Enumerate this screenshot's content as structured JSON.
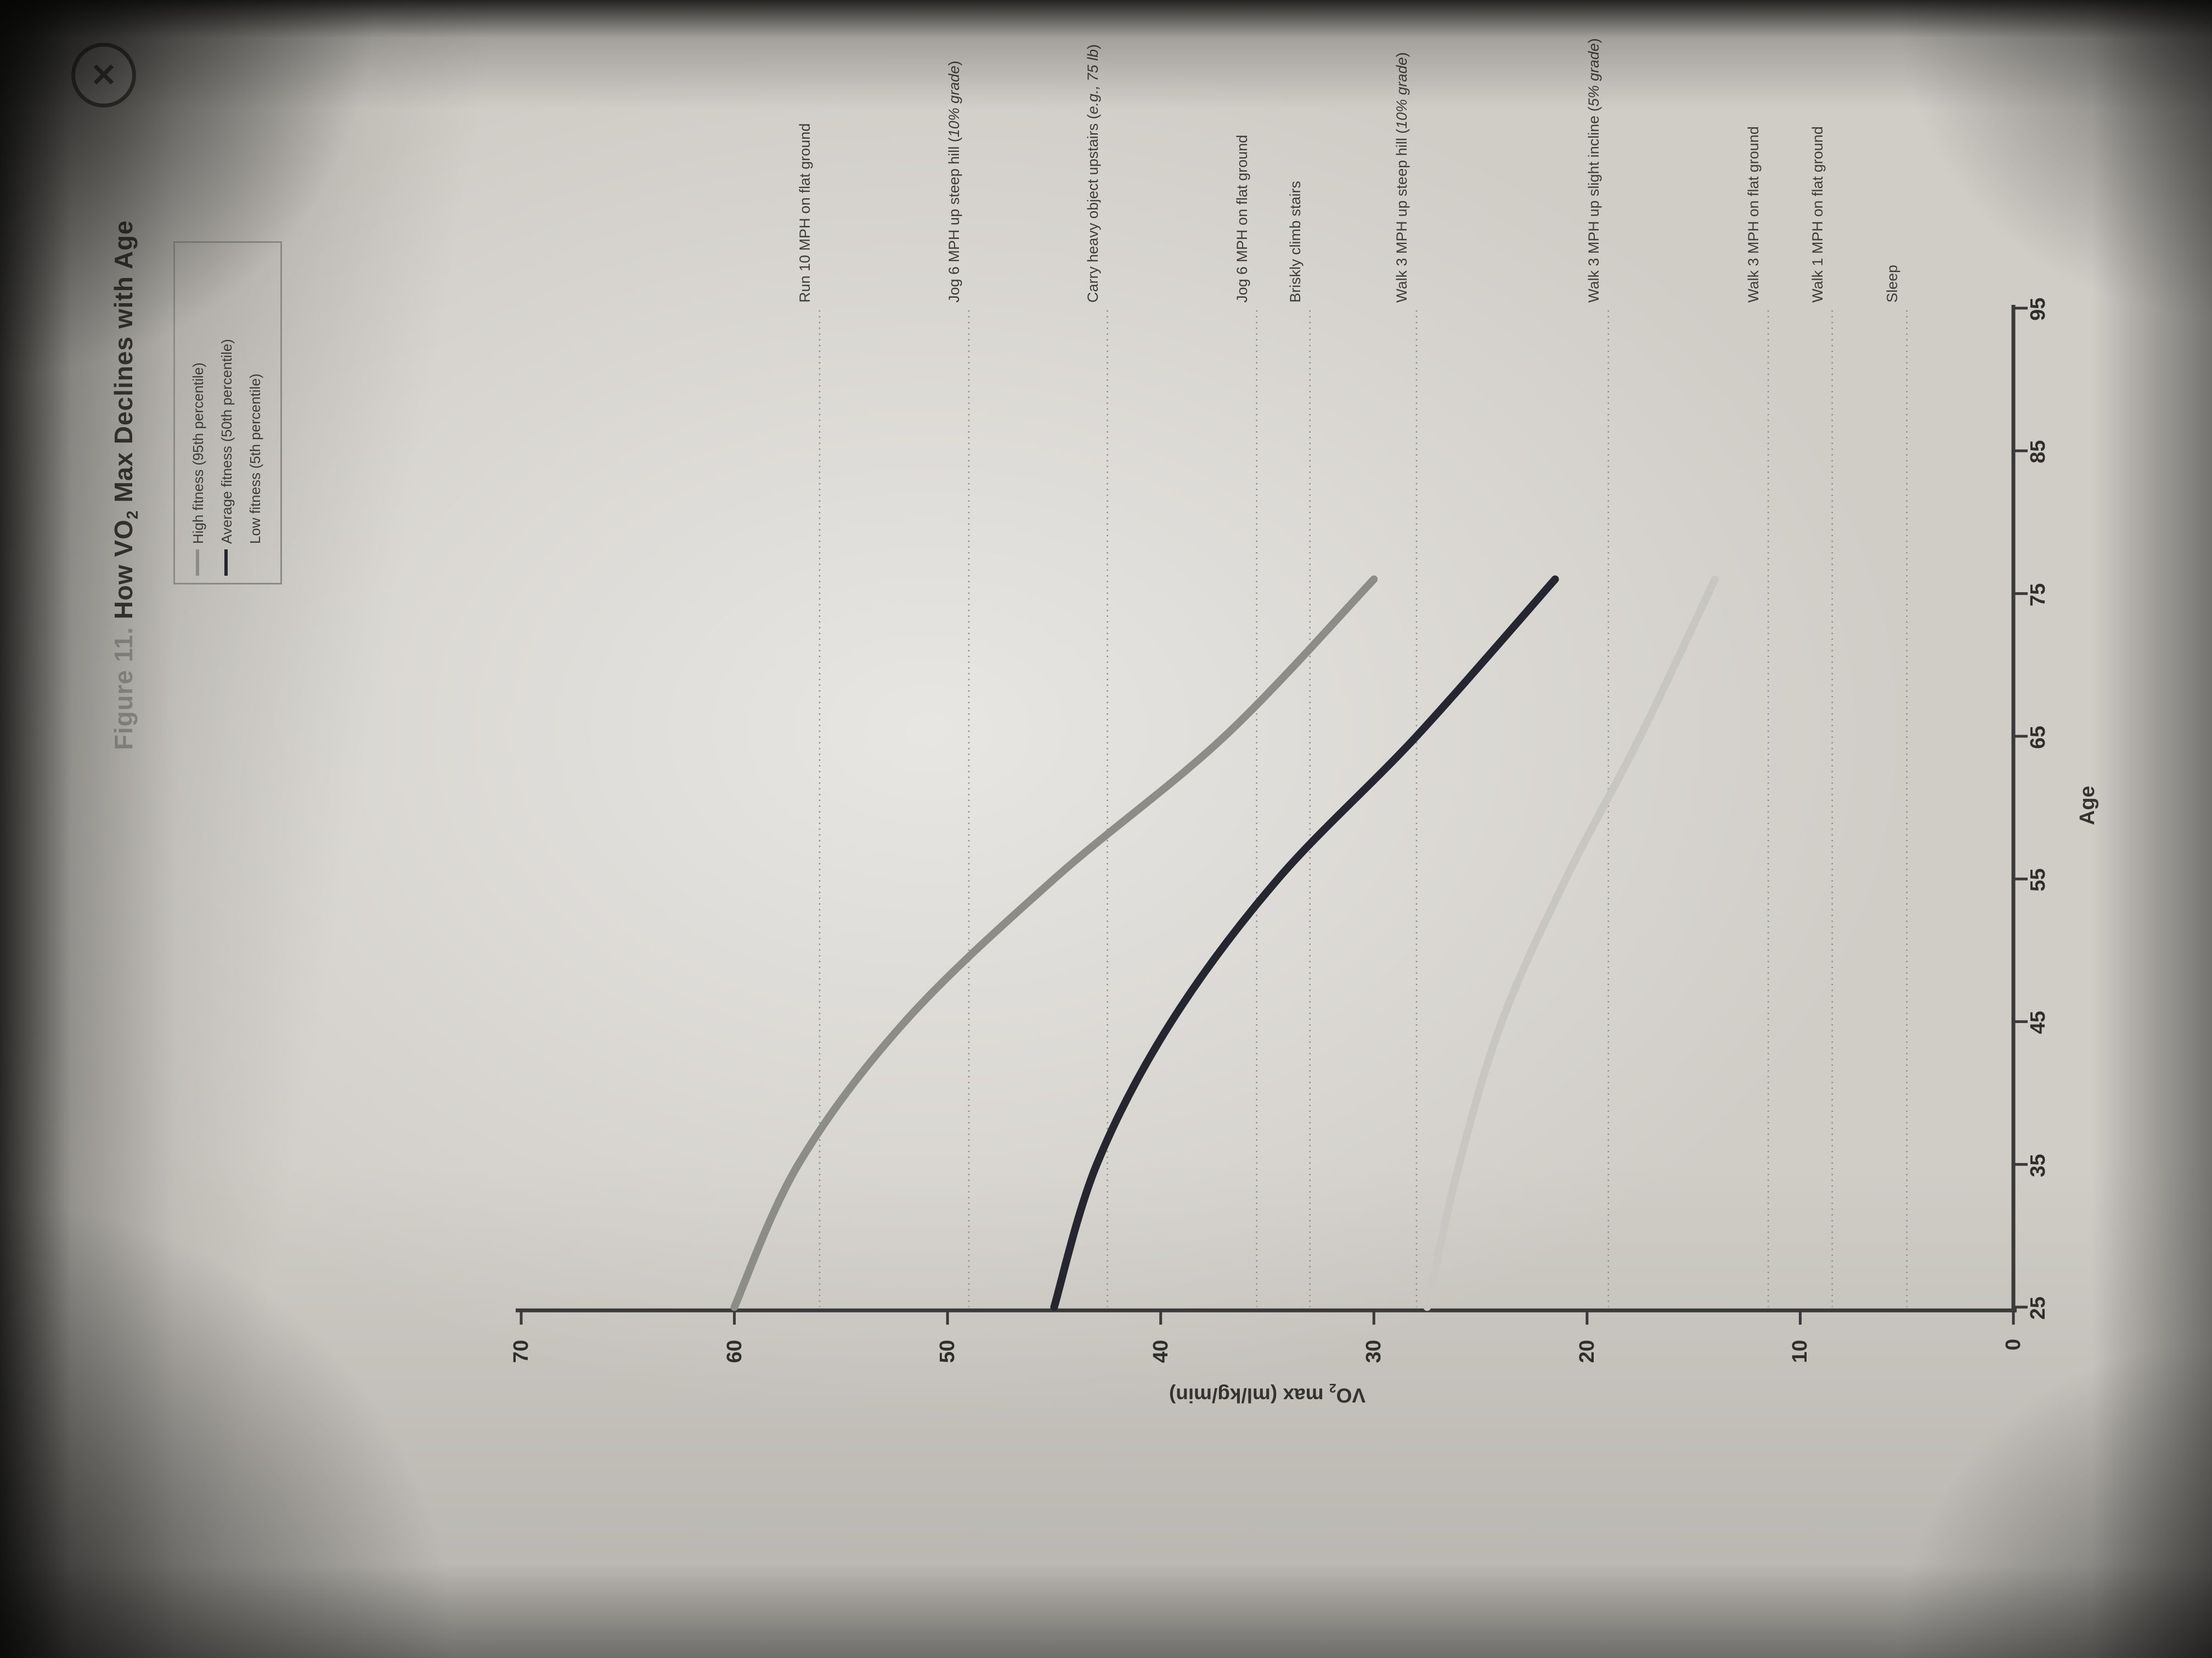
{
  "viewer": {
    "close_icon": "✕"
  },
  "figure_title": {
    "label": "Figure 11.",
    "pre_sub": " How VO",
    "sub": "2",
    "post_sub": " Max Declines with Age"
  },
  "legend": [
    {
      "label": "High fitness (95th percentile)",
      "color": "#8d8d87"
    },
    {
      "label": "Average fitness (50th percentile)",
      "color": "#262630"
    },
    {
      "label": "Low fitness (5th percentile)",
      "color": "#c7c6c0"
    }
  ],
  "chart_data": {
    "type": "line",
    "title": "How VO2 Max Declines with Age",
    "xlabel": "Age",
    "ylabel": "VO2 max (ml/kg/min)",
    "ylabel_pre": "VO",
    "ylabel_sub": "2",
    "ylabel_post": " max (ml/kg/min)",
    "xlim": [
      25,
      95
    ],
    "ylim": [
      0,
      70
    ],
    "x_ticks": [
      25,
      35,
      45,
      55,
      65,
      75,
      85,
      95
    ],
    "y_ticks": [
      0,
      10,
      20,
      30,
      40,
      50,
      60,
      70
    ],
    "grid": false,
    "legend_position": "top-right",
    "orientation": "rotated-90-ccw-in-photo",
    "dotted_line_color": "#8f8f89",
    "series": [
      {
        "name": "High fitness (95th percentile)",
        "color": "#8d8d87",
        "x": [
          25,
          35,
          45,
          55,
          65,
          76
        ],
        "y": [
          60,
          57,
          52,
          45,
          37,
          30
        ]
      },
      {
        "name": "Average fitness (50th percentile)",
        "color": "#262630",
        "x": [
          25,
          35,
          45,
          55,
          65,
          76
        ],
        "y": [
          45,
          43,
          39.5,
          34.5,
          28,
          21.5
        ]
      },
      {
        "name": "Low fitness (5th percentile)",
        "color": "#c7c6c0",
        "x": [
          25,
          35,
          45,
          55,
          65,
          76
        ],
        "y": [
          27.5,
          26,
          24,
          21,
          17.5,
          14
        ]
      }
    ],
    "reference_lines": [
      {
        "label": "Run 10 MPH on flat ground",
        "value": 56
      },
      {
        "label": "Jog 6 MPH up steep hill (10% grade)",
        "value": 49
      },
      {
        "label": "Carry heavy object upstairs (e.g., 75 lb)",
        "value": 42.5
      },
      {
        "label": "Jog 6 MPH on flat ground",
        "value": 35.5
      },
      {
        "label": "Briskly climb stairs",
        "value": 33
      },
      {
        "label": "Walk 3 MPH up steep hill (10% grade)",
        "value": 28
      },
      {
        "label": "Walk 3 MPH up slight incline (5% grade)",
        "value": 19
      },
      {
        "label": "Walk 3 MPH on flat ground",
        "value": 11.5
      },
      {
        "label": "Walk 1 MPH on flat ground",
        "value": 8.5
      },
      {
        "label": "Sleep",
        "value": 5
      }
    ]
  }
}
